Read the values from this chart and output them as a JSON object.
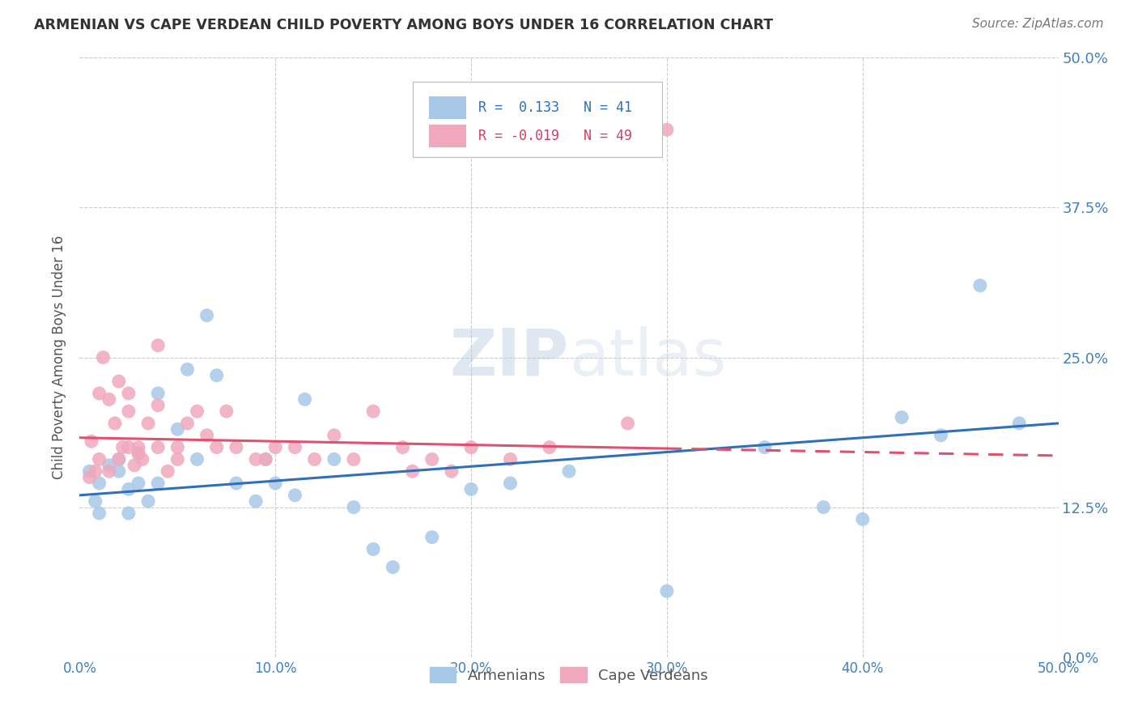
{
  "title": "ARMENIAN VS CAPE VERDEAN CHILD POVERTY AMONG BOYS UNDER 16 CORRELATION CHART",
  "source": "Source: ZipAtlas.com",
  "ylabel": "Child Poverty Among Boys Under 16",
  "xlim": [
    0.0,
    0.5
  ],
  "ylim": [
    0.0,
    0.5
  ],
  "armenian_color": "#A8C8E8",
  "cape_verdean_color": "#F0A8BC",
  "armenian_line_color": "#3070B8",
  "cape_verdean_line_color": "#E05070",
  "watermark": "ZIPatlas",
  "armenians_x": [
    0.005,
    0.008,
    0.01,
    0.01,
    0.015,
    0.02,
    0.02,
    0.025,
    0.025,
    0.03,
    0.03,
    0.035,
    0.04,
    0.04,
    0.05,
    0.055,
    0.06,
    0.065,
    0.07,
    0.08,
    0.09,
    0.095,
    0.1,
    0.11,
    0.115,
    0.13,
    0.14,
    0.15,
    0.16,
    0.18,
    0.2,
    0.22,
    0.25,
    0.3,
    0.35,
    0.38,
    0.4,
    0.42,
    0.44,
    0.46,
    0.48
  ],
  "armenians_y": [
    0.155,
    0.13,
    0.12,
    0.145,
    0.16,
    0.155,
    0.165,
    0.14,
    0.12,
    0.145,
    0.17,
    0.13,
    0.145,
    0.22,
    0.19,
    0.24,
    0.165,
    0.285,
    0.235,
    0.145,
    0.13,
    0.165,
    0.145,
    0.135,
    0.215,
    0.165,
    0.125,
    0.09,
    0.075,
    0.1,
    0.14,
    0.145,
    0.155,
    0.055,
    0.175,
    0.125,
    0.115,
    0.2,
    0.185,
    0.31,
    0.195
  ],
  "cape_verdeans_x": [
    0.005,
    0.006,
    0.008,
    0.01,
    0.01,
    0.012,
    0.015,
    0.015,
    0.018,
    0.02,
    0.02,
    0.022,
    0.025,
    0.025,
    0.025,
    0.028,
    0.03,
    0.03,
    0.032,
    0.035,
    0.04,
    0.04,
    0.04,
    0.045,
    0.05,
    0.05,
    0.055,
    0.06,
    0.065,
    0.07,
    0.075,
    0.08,
    0.09,
    0.095,
    0.1,
    0.11,
    0.12,
    0.13,
    0.14,
    0.15,
    0.165,
    0.17,
    0.18,
    0.19,
    0.2,
    0.22,
    0.24,
    0.28,
    0.3
  ],
  "cape_verdeans_y": [
    0.15,
    0.18,
    0.155,
    0.165,
    0.22,
    0.25,
    0.155,
    0.215,
    0.195,
    0.165,
    0.23,
    0.175,
    0.175,
    0.205,
    0.22,
    0.16,
    0.17,
    0.175,
    0.165,
    0.195,
    0.175,
    0.21,
    0.26,
    0.155,
    0.165,
    0.175,
    0.195,
    0.205,
    0.185,
    0.175,
    0.205,
    0.175,
    0.165,
    0.165,
    0.175,
    0.175,
    0.165,
    0.185,
    0.165,
    0.205,
    0.175,
    0.155,
    0.165,
    0.155,
    0.175,
    0.165,
    0.175,
    0.195,
    0.44
  ],
  "arm_line_x0": 0.0,
  "arm_line_x1": 0.5,
  "arm_line_y0": 0.135,
  "arm_line_y1": 0.195,
  "cape_line_x0": 0.0,
  "cape_line_x1": 0.5,
  "cape_line_y0": 0.183,
  "cape_line_y1": 0.168
}
